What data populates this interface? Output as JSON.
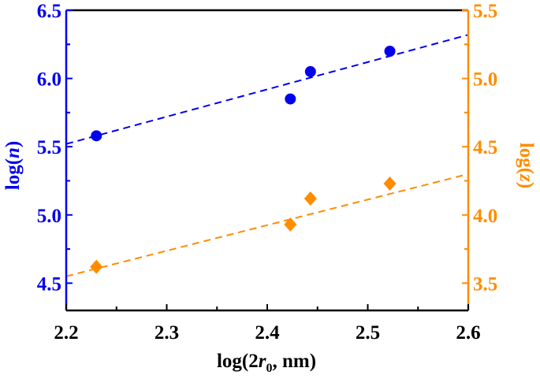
{
  "chart_data": {
    "type": "scatter",
    "xlabel": "log(2r0, nm)",
    "xlabel_parts": {
      "pre": "log(2",
      "var": "r",
      "sub": "0",
      "post": ", nm)"
    },
    "ylabel_left": "log(n)",
    "ylabel_left_parts": {
      "pre": "log(",
      "var": "n",
      "post": ")"
    },
    "ylabel_right": "log(z)",
    "ylabel_right_parts": {
      "pre": "log(",
      "var": "z",
      "post": ")"
    },
    "xlim": [
      2.2,
      2.6
    ],
    "ylim_left": [
      4.3,
      6.5
    ],
    "ylim_right": [
      3.3,
      5.5
    ],
    "xticks": [
      "2.2",
      "2.3",
      "2.4",
      "2.5",
      "2.6"
    ],
    "yticks_left": [
      "4.5",
      "5.0",
      "5.5",
      "6.0",
      "6.5"
    ],
    "yticks_right": [
      "3.5",
      "4.0",
      "4.5",
      "5.0",
      "5.5"
    ],
    "grid": false,
    "colors": {
      "left": "#0000ee",
      "right": "#ff8c00",
      "axis": "#000000"
    },
    "series": [
      {
        "axis": "left",
        "marker": "circle",
        "color": "#0000ee",
        "x": [
          2.23,
          2.423,
          2.443,
          2.522
        ],
        "y": [
          5.58,
          5.85,
          6.05,
          6.2
        ],
        "fit": {
          "style": "dashed",
          "x": [
            2.2,
            2.6
          ],
          "y": [
            5.52,
            6.32
          ]
        }
      },
      {
        "axis": "right",
        "marker": "diamond",
        "color": "#ff8c00",
        "x": [
          2.23,
          2.423,
          2.443,
          2.522
        ],
        "y": [
          3.62,
          3.93,
          4.12,
          4.23
        ],
        "fit": {
          "style": "dashed",
          "x": [
            2.2,
            2.6
          ],
          "y": [
            3.55,
            4.3
          ]
        }
      }
    ]
  }
}
